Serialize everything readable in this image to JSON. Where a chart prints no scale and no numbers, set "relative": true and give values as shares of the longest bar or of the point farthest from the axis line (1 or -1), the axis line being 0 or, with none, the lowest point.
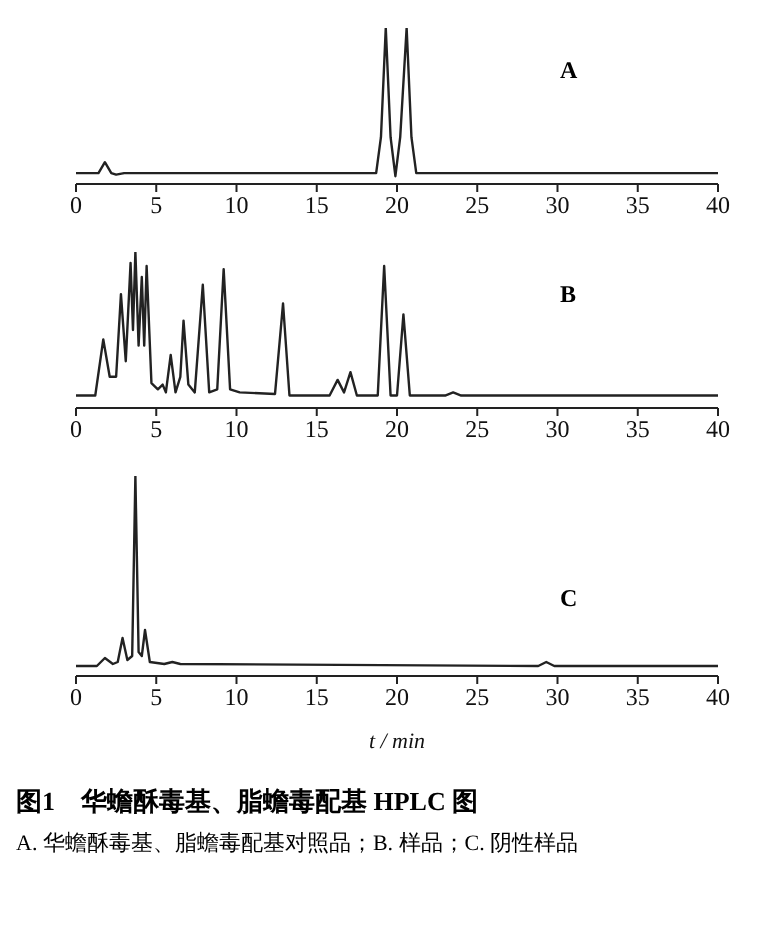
{
  "chart_data": [
    {
      "type": "line",
      "title": "A",
      "relative": true,
      "xlim": [
        0,
        40
      ],
      "xticks": [
        0,
        5,
        10,
        15,
        20,
        25,
        30,
        35,
        40
      ],
      "marker": "none",
      "line_style": "solid",
      "series": [
        {
          "color": "#222222",
          "x": [
            0,
            1.4,
            1.8,
            2.2,
            2.5,
            3,
            18.7,
            19.0,
            19.3,
            19.6,
            19.9,
            20.2,
            20.6,
            20.9,
            21.2,
            40
          ],
          "values": [
            0.07,
            0.07,
            0.14,
            0.07,
            0.06,
            0.07,
            0.07,
            0.3,
            1.0,
            0.3,
            0.05,
            0.3,
            1.0,
            0.3,
            0.07,
            0.07
          ]
        }
      ]
    },
    {
      "type": "line",
      "title": "B",
      "relative": true,
      "xlim": [
        0,
        40
      ],
      "xticks": [
        0,
        5,
        10,
        15,
        20,
        25,
        30,
        35,
        40
      ],
      "marker": "none",
      "line_style": "solid",
      "series": [
        {
          "color": "#222222",
          "x": [
            0,
            1.2,
            1.7,
            2.1,
            2.5,
            2.8,
            3.1,
            3.4,
            3.55,
            3.7,
            3.9,
            4.1,
            4.25,
            4.4,
            4.7,
            5.1,
            5.4,
            5.6,
            5.9,
            6.2,
            6.5,
            6.7,
            7.0,
            7.4,
            7.9,
            8.3,
            8.8,
            9.2,
            9.6,
            10.2,
            12.4,
            12.9,
            13.3,
            15.8,
            16.3,
            16.7,
            17.1,
            17.5,
            18.8,
            19.2,
            19.6,
            20.0,
            20.4,
            20.8,
            21.3,
            23.0,
            23.5,
            24.0,
            40
          ],
          "values": [
            0.08,
            0.08,
            0.44,
            0.2,
            0.2,
            0.73,
            0.3,
            0.93,
            0.5,
            1.0,
            0.4,
            0.84,
            0.4,
            0.91,
            0.16,
            0.12,
            0.15,
            0.1,
            0.34,
            0.1,
            0.2,
            0.56,
            0.15,
            0.1,
            0.79,
            0.1,
            0.12,
            0.89,
            0.12,
            0.1,
            0.09,
            0.67,
            0.08,
            0.08,
            0.18,
            0.1,
            0.23,
            0.08,
            0.08,
            0.91,
            0.08,
            0.08,
            0.6,
            0.08,
            0.08,
            0.08,
            0.1,
            0.08,
            0.08
          ]
        }
      ]
    },
    {
      "type": "line",
      "title": "C",
      "xlabel": "t / min",
      "relative": true,
      "xlim": [
        0,
        40
      ],
      "xticks": [
        0,
        5,
        10,
        15,
        20,
        25,
        30,
        35,
        40
      ],
      "marker": "none",
      "line_style": "solid",
      "annotations": [
        "图1　华蟾酥毒基、脂蟾毒配基 HPLC 图",
        "A. 华蟾酥毒基、脂蟾毒配基对照品；B. 样品；C. 阴性样品"
      ],
      "series": [
        {
          "color": "#222222",
          "x": [
            0,
            1.3,
            1.8,
            2.3,
            2.6,
            2.9,
            3.2,
            3.5,
            3.7,
            3.9,
            4.1,
            4.3,
            4.6,
            5.5,
            6.0,
            6.5,
            28.8,
            29.3,
            29.8,
            40
          ],
          "values": [
            0.05,
            0.05,
            0.09,
            0.06,
            0.07,
            0.19,
            0.08,
            0.1,
            1.0,
            0.12,
            0.1,
            0.23,
            0.07,
            0.06,
            0.07,
            0.06,
            0.05,
            0.07,
            0.05,
            0.05
          ]
        }
      ]
    }
  ]
}
